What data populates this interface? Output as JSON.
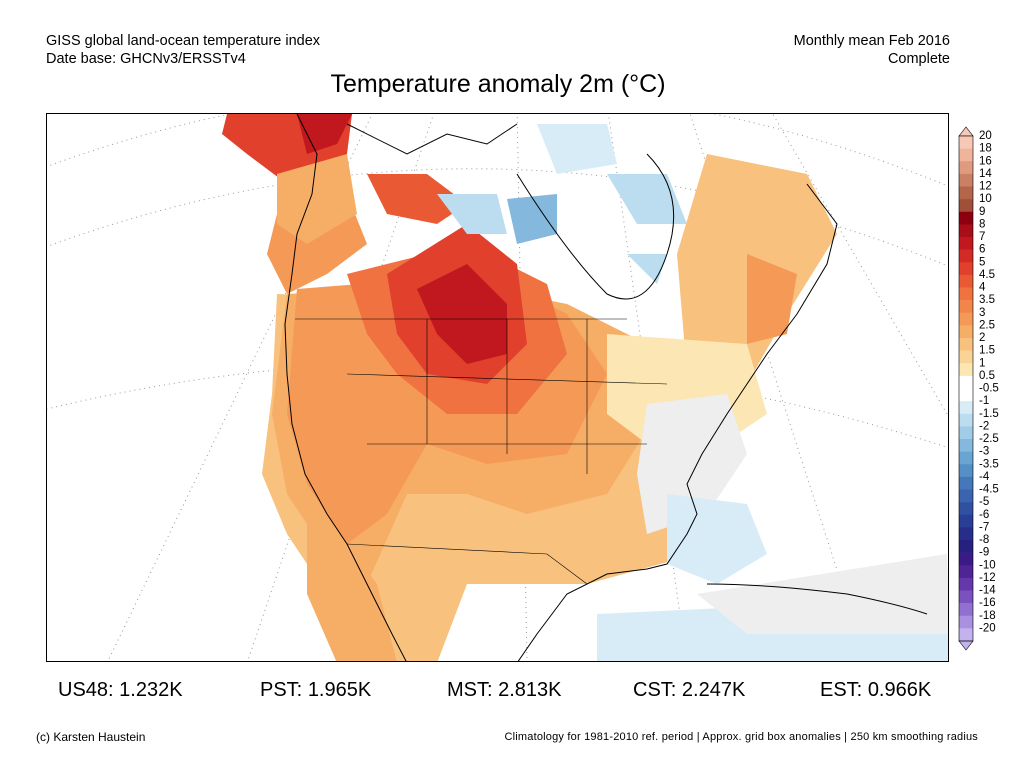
{
  "header": {
    "line1_left": "GISS global land-ocean temperature index",
    "line2_left": "Date base: GHCNv3/ERSSTv4",
    "line1_right": "Monthly mean Feb 2016",
    "line2_right": "Complete"
  },
  "title": "Temperature anomaly 2m (°C)",
  "colorbar": {
    "labels": [
      "20",
      "18",
      "16",
      "14",
      "12",
      "10",
      "9",
      "8",
      "7",
      "6",
      "5",
      "4.5",
      "4",
      "3.5",
      "3",
      "2.5",
      "2",
      "1.5",
      "1",
      "0.5",
      "-0.5",
      "-1",
      "-1.5",
      "-2",
      "-2.5",
      "-3",
      "-3.5",
      "-4",
      "-4.5",
      "-5",
      "-6",
      "-7",
      "-8",
      "-9",
      "-10",
      "-12",
      "-14",
      "-16",
      "-18",
      "-20"
    ],
    "colors": [
      "#f6c8b5",
      "#f0b49b",
      "#e09a80",
      "#c98064",
      "#b4654a",
      "#a04f39",
      "#8c0010",
      "#a80e18",
      "#c0181e",
      "#d42a26",
      "#e0402c",
      "#e95a34",
      "#ef7240",
      "#f2864a",
      "#f59a56",
      "#f6ad66",
      "#f8c27e",
      "#fad496",
      "#fce6b4",
      "#ffffff",
      "#ffffff",
      "#d8ecf8",
      "#bcdcf0",
      "#a0cce8",
      "#84b8dc",
      "#6aa4d0",
      "#5490c6",
      "#4478ba",
      "#3a64ae",
      "#3050a0",
      "#2a3e96",
      "#262e8a",
      "#26207e",
      "#3a1a86",
      "#4e2496",
      "#6438aa",
      "#7a52be",
      "#9270d0",
      "#aa90e0",
      "#c4b2ee"
    ]
  },
  "stats": [
    {
      "label": "US48:",
      "value": "1.232K"
    },
    {
      "label": "PST:",
      "value": "1.965K"
    },
    {
      "label": "MST:",
      "value": "2.813K"
    },
    {
      "label": "CST:",
      "value": "2.247K"
    },
    {
      "label": "EST:",
      "value": "0.966K"
    }
  ],
  "footer": {
    "left": "(c) Karsten Haustein",
    "right": "Climatology for 1981-2010 ref. period | Approx. grid box anomalies | 250 km smoothing radius"
  }
}
